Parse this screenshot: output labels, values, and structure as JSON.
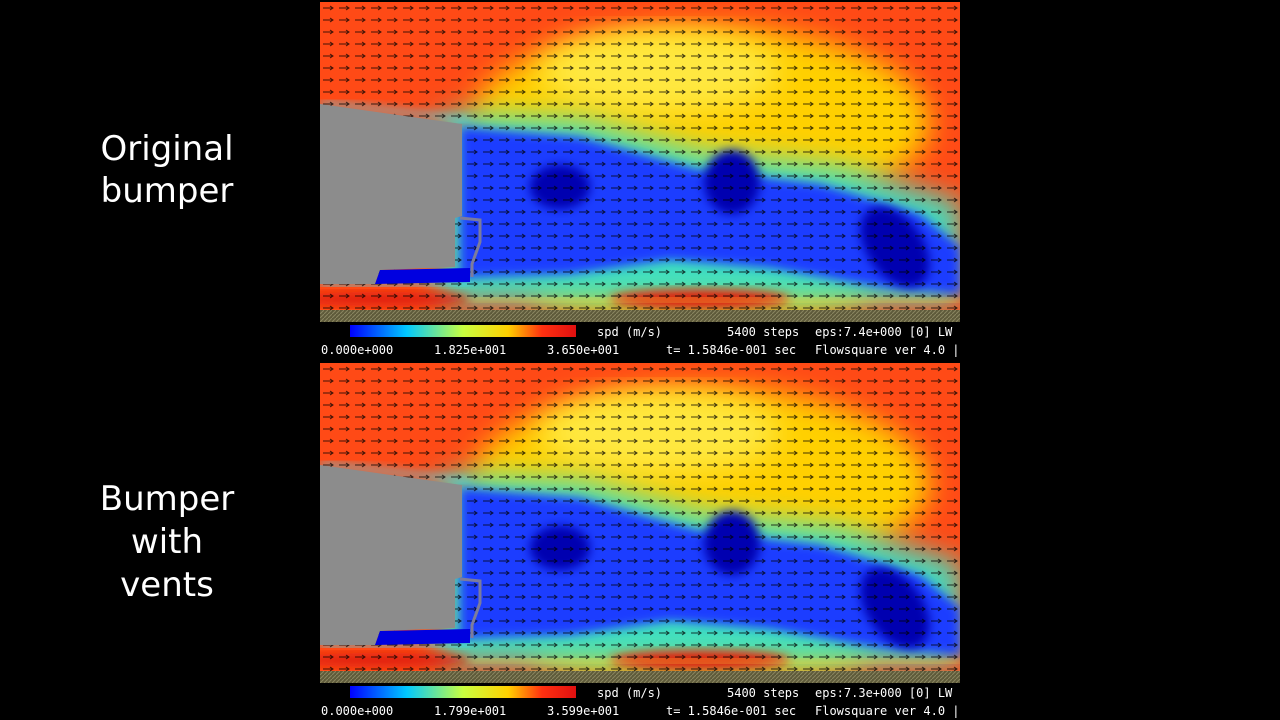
{
  "panels": [
    {
      "label_lines": [
        "Original",
        "bumper"
      ],
      "colorbar": {
        "quantity": "spd (m/s)",
        "min": "0.000e+000",
        "mid": "1.825e+001",
        "max": "3.650e+001"
      },
      "status": {
        "steps": "5400 steps",
        "eps": "eps:7.4e+000 [0] LW",
        "time": "t= 1.5846e-001 sec",
        "version": "Flowsquare ver 4.0 |"
      }
    },
    {
      "label_lines": [
        "Bumper",
        "with",
        "vents"
      ],
      "colorbar": {
        "quantity": "spd (m/s)",
        "min": "0.000e+000",
        "mid": "1.799e+001",
        "max": "3.599e+001"
      },
      "status": {
        "steps": "5400 steps",
        "eps": "eps:7.3e+000 [0] LW",
        "time": "t= 1.5846e-001 sec",
        "version": "Flowsquare ver 4.0 |"
      }
    }
  ]
}
